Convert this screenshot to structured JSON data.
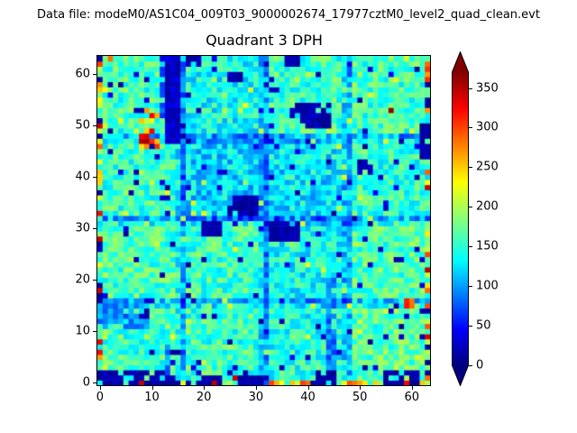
{
  "header": {
    "text": "Data file: modeM0/AS1C04_009T03_9000002674_17977cztM0_level2_quad_clean.evt"
  },
  "colors": {
    "background": "#ffffff",
    "text": "#000000",
    "frame": "#000000"
  },
  "chart_data": {
    "type": "heatmap",
    "title": "Quadrant 3 DPH",
    "xlabel": "",
    "ylabel": "",
    "grid_size": 64,
    "xlim": [
      -0.5,
      63.5
    ],
    "ylim": [
      -0.5,
      63.5
    ],
    "x_ticks": [
      0,
      10,
      20,
      30,
      40,
      50,
      60
    ],
    "y_ticks": [
      0,
      10,
      20,
      30,
      40,
      50,
      60
    ],
    "grid": false,
    "legend": "none",
    "colormap": "jet",
    "colormap_stops": [
      {
        "pos": 0.0,
        "color": "#000080"
      },
      {
        "pos": 0.125,
        "color": "#0000ff"
      },
      {
        "pos": 0.36,
        "color": "#00ffff"
      },
      {
        "pos": 0.625,
        "color": "#ffff00"
      },
      {
        "pos": 0.875,
        "color": "#ff0000"
      },
      {
        "pos": 1.0,
        "color": "#800000"
      }
    ],
    "colorbar": {
      "position": "right",
      "ticks": [
        0,
        50,
        100,
        150,
        200,
        250,
        300,
        350
      ],
      "vmin": 0,
      "vmax": 370,
      "extend": "both"
    },
    "description": "64x64 detector-plane count histogram; mostly cyan background (~120-190 counts), 16x16 module boundaries visible as darker blue lines, dead/noisy pixel patches in navy (~0-40), hot pixels along left column and bottom row in yellow/orange/red (~200-370).",
    "generation": {
      "seed": 1337,
      "base_mean": 153,
      "base_jitter": 37,
      "module_size": 16,
      "module_offsets": [
        [
          6,
          4,
          -8,
          12
        ],
        [
          8,
          5,
          -14,
          10
        ],
        [
          2,
          -30,
          -20,
          0
        ],
        [
          4,
          -14,
          2,
          4
        ]
      ],
      "boundary_strong": 34,
      "boundary_weak": 14,
      "boundary_jitter": 26,
      "speckle_low": {
        "prob": 0.042,
        "min": 6,
        "max": 48
      },
      "speckle_high": {
        "prob": 0.028,
        "min": 186,
        "max": 228
      },
      "edge_hot": {
        "cols": [
          0,
          63
        ],
        "rows": [
          0
        ],
        "prob": 0.4,
        "min": 198,
        "max": 348,
        "navy_prob": 0.14,
        "navy_value": 12
      },
      "features": [
        {
          "name": "dead-column-stripe",
          "x": 13,
          "y": 47,
          "w": 3,
          "h": 17,
          "v": 26,
          "j": 16
        },
        {
          "name": "stripe-left-fringe",
          "x": 12,
          "y": 52,
          "w": 1,
          "h": 11,
          "v": 75,
          "j": 45,
          "p": 0.6
        },
        {
          "name": "hot-cluster",
          "x": 8,
          "y": 46,
          "w": 4,
          "h": 8,
          "v": 262,
          "j": 70,
          "p": 0.5
        },
        {
          "name": "hot-cluster-core",
          "x": 8,
          "y": 47,
          "w": 2,
          "h": 2,
          "v": 338,
          "j": 22,
          "p": 0.95
        },
        {
          "name": "orange-top-left-edge",
          "x": 2,
          "y": 63,
          "w": 1,
          "h": 1,
          "v": 285,
          "j": 20
        },
        {
          "name": "navy-blob-mid",
          "x": 25,
          "y": 33,
          "w": 6,
          "h": 4,
          "v": 16,
          "j": 12,
          "p": 0.92
        },
        {
          "name": "navy-blob-upper-right",
          "x": 39,
          "y": 50,
          "w": 6,
          "h": 5,
          "v": 16,
          "j": 12,
          "p": 0.85
        },
        {
          "name": "navy-arm-upper-right",
          "x": 37,
          "y": 52,
          "w": 2,
          "h": 2,
          "v": 20,
          "j": 14,
          "p": 0.8
        },
        {
          "name": "navy-right-edge-patch",
          "x": 62,
          "y": 44,
          "w": 2,
          "h": 7,
          "v": 18,
          "j": 13,
          "p": 0.9
        },
        {
          "name": "navy-small-blob",
          "x": 50,
          "y": 41,
          "w": 3,
          "h": 3,
          "v": 22,
          "j": 16,
          "p": 0.7
        },
        {
          "name": "dark-red-pixel",
          "x": 56,
          "y": 53,
          "w": 1,
          "h": 1,
          "v": 366,
          "j": 4
        },
        {
          "name": "orange-top-right-corner",
          "x": 63,
          "y": 62,
          "w": 1,
          "h": 1,
          "v": 292,
          "j": 15
        },
        {
          "name": "navy-top-edge-a",
          "x": 17,
          "y": 62,
          "w": 3,
          "h": 2,
          "v": 18,
          "j": 12,
          "p": 0.8
        },
        {
          "name": "navy-top-edge-b",
          "x": 36,
          "y": 62,
          "w": 3,
          "h": 2,
          "v": 18,
          "j": 12,
          "p": 0.8
        },
        {
          "name": "navy-patch-32-57",
          "x": 32,
          "y": 57,
          "w": 3,
          "h": 3,
          "v": 20,
          "j": 14,
          "p": 0.7
        },
        {
          "name": "navy-blob-25-59",
          "x": 25,
          "y": 59,
          "w": 3,
          "h": 2,
          "v": 18,
          "j": 12,
          "p": 0.8
        },
        {
          "name": "blue-box-region",
          "x": 33,
          "y": 33,
          "w": 13,
          "h": 10,
          "v": 118,
          "j": 26,
          "p": 0.45
        },
        {
          "name": "blue-wedge",
          "x": 0,
          "y": 11,
          "w": 10,
          "h": 5,
          "v": 96,
          "j": 28,
          "p": 0.85
        },
        {
          "name": "navy-wedge-tip",
          "x": 8,
          "y": 13,
          "w": 2,
          "h": 2,
          "v": 15,
          "j": 8,
          "p": 0.8
        },
        {
          "name": "navy-blob-20-29",
          "x": 20,
          "y": 29,
          "w": 4,
          "h": 3,
          "v": 16,
          "j": 12,
          "p": 0.9
        },
        {
          "name": "navy-blob-33-28",
          "x": 33,
          "y": 28,
          "w": 6,
          "h": 4,
          "v": 15,
          "j": 10,
          "p": 0.88
        },
        {
          "name": "blue-stripe-44",
          "x": 44,
          "y": 2,
          "w": 2,
          "h": 19,
          "v": 88,
          "j": 26,
          "p": 0.9
        },
        {
          "name": "blue-col-13-low",
          "x": 13,
          "y": 2,
          "w": 1,
          "h": 6,
          "v": 95,
          "j": 30,
          "p": 0.8
        },
        {
          "name": "navy-bottom-band",
          "x": 1,
          "y": 0,
          "w": 15,
          "h": 3,
          "v": 14,
          "j": 10,
          "p": 0.62
        },
        {
          "name": "navy-bottom-19",
          "x": 19,
          "y": 0,
          "w": 5,
          "h": 2,
          "v": 15,
          "j": 10,
          "p": 0.75
        },
        {
          "name": "navy-bottom-27",
          "x": 27,
          "y": 0,
          "w": 5,
          "h": 2,
          "v": 15,
          "j": 10,
          "p": 0.7
        },
        {
          "name": "navy-blob-bottom-41",
          "x": 41,
          "y": 0,
          "w": 5,
          "h": 3,
          "v": 15,
          "j": 10,
          "p": 0.85
        },
        {
          "name": "navy-bottom-right",
          "x": 55,
          "y": 0,
          "w": 7,
          "h": 3,
          "v": 15,
          "j": 10,
          "p": 0.75
        },
        {
          "name": "red-pixel-8-0",
          "x": 8,
          "y": 0,
          "w": 1,
          "h": 1,
          "v": 352,
          "j": 10
        },
        {
          "name": "red-pixel-22-0",
          "x": 22,
          "y": 0,
          "w": 1,
          "h": 1,
          "v": 340,
          "j": 12
        },
        {
          "name": "red-pixel-26-1",
          "x": 26,
          "y": 1,
          "w": 1,
          "h": 1,
          "v": 330,
          "j": 12
        },
        {
          "name": "orange-right-edge",
          "x": 59,
          "y": 15,
          "w": 2,
          "h": 2,
          "v": 286,
          "j": 36
        },
        {
          "name": "yellow-top-edge-56",
          "x": 56,
          "y": 63,
          "w": 4,
          "h": 1,
          "v": 205,
          "j": 18,
          "p": 0.8
        }
      ]
    }
  }
}
